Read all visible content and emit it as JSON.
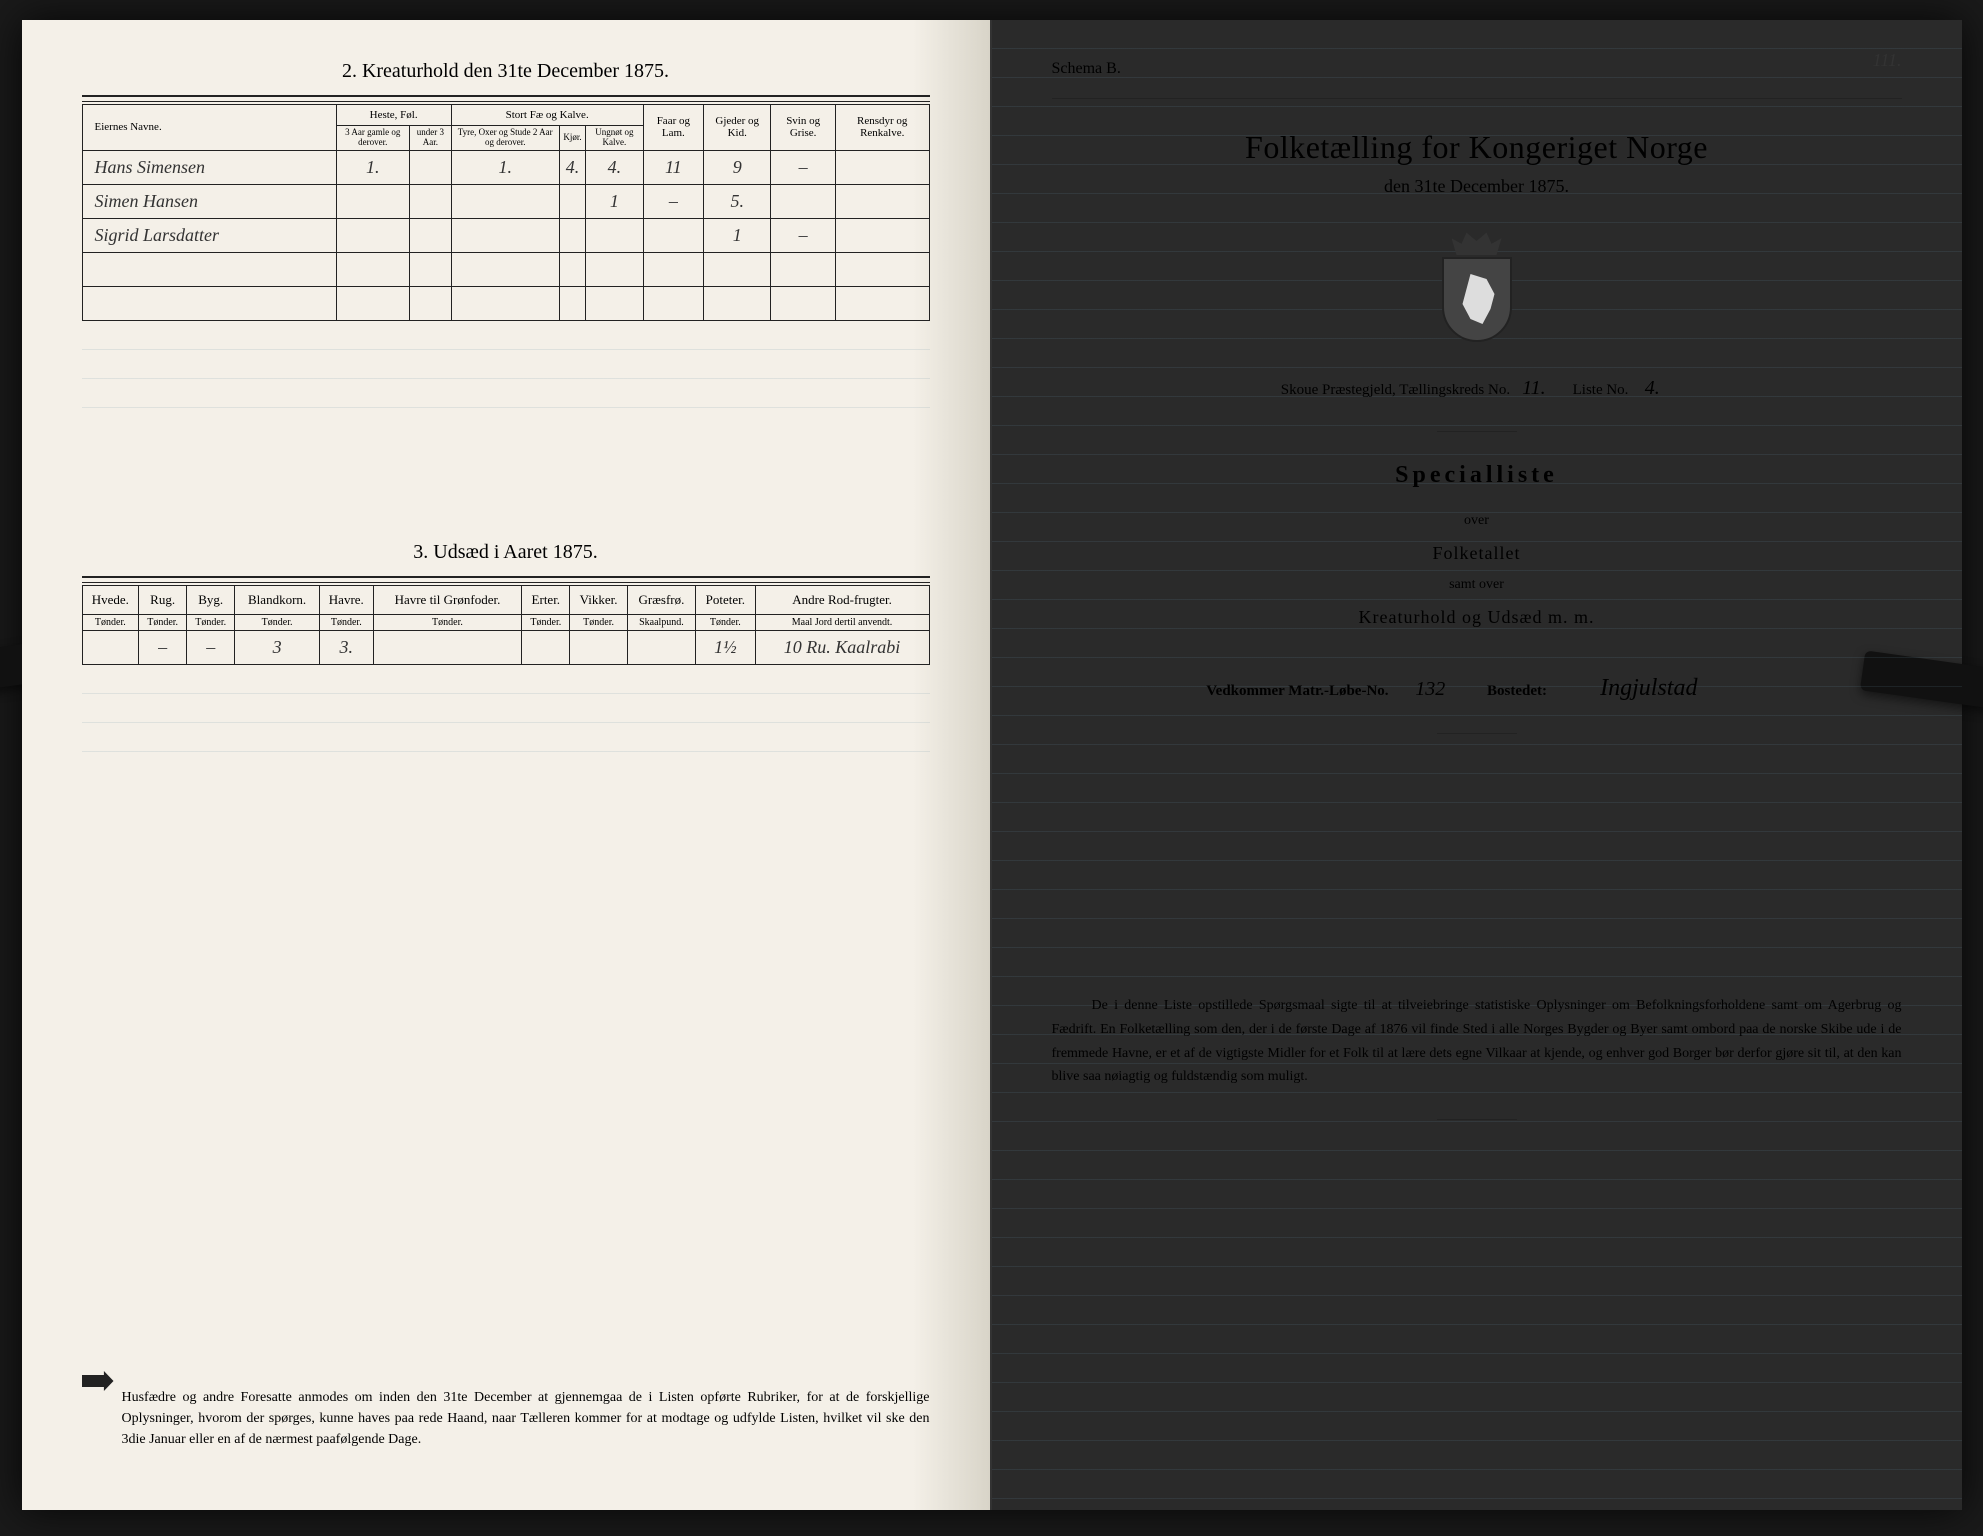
{
  "left": {
    "section2_title": "2.  Kreaturhold den 31te December 1875.",
    "section3_title": "3.  Udsæd i Aaret 1875.",
    "kreatur": {
      "headers": {
        "owner": "Eiernes Navne.",
        "group_horse": "Heste, Føl.",
        "group_cattle": "Stort Fæ og Kalve.",
        "sheep": "Faar og Lam.",
        "goat": "Gjeder og Kid.",
        "pig": "Svin og Grise.",
        "reindeer": "Rensdyr og Renkalve.",
        "horse_a": "3 Aar gamle og derover.",
        "horse_b": "under 3 Aar.",
        "cattle_a": "Tyre, Oxer og Stude 2 Aar og derover.",
        "cattle_b": "Kjør.",
        "cattle_c": "Ungnøt og Kalve."
      },
      "rows": [
        {
          "owner": "Hans Simensen",
          "h1": "1.",
          "h2": "",
          "c1": "1.",
          "c2": "4.",
          "c3": "4.",
          "sheep": "11",
          "goat": "9",
          "pig": "–",
          "rein": ""
        },
        {
          "owner": "Simen Hansen",
          "h1": "",
          "h2": "",
          "c1": "",
          "c2": "",
          "c3": "1",
          "sheep": "–",
          "goat": "5.",
          "pig": "",
          "rein": ""
        },
        {
          "owner": "Sigrid Larsdatter",
          "h1": "",
          "h2": "",
          "c1": "",
          "c2": "",
          "c3": "",
          "sheep": "",
          "goat": "1",
          "pig": "–",
          "rein": ""
        },
        {
          "owner": "",
          "h1": "",
          "h2": "",
          "c1": "",
          "c2": "",
          "c3": "",
          "sheep": "",
          "goat": "",
          "pig": "",
          "rein": ""
        },
        {
          "owner": "",
          "h1": "",
          "h2": "",
          "c1": "",
          "c2": "",
          "c3": "",
          "sheep": "",
          "goat": "",
          "pig": "",
          "rein": ""
        }
      ]
    },
    "udsaed": {
      "cols": [
        {
          "label": "Hvede.",
          "unit": "Tønder."
        },
        {
          "label": "Rug.",
          "unit": "Tønder."
        },
        {
          "label": "Byg.",
          "unit": "Tønder."
        },
        {
          "label": "Blandkorn.",
          "unit": "Tønder."
        },
        {
          "label": "Havre.",
          "unit": "Tønder."
        },
        {
          "label": "Havre til Grønfoder.",
          "unit": "Tønder."
        },
        {
          "label": "Erter.",
          "unit": "Tønder."
        },
        {
          "label": "Vikker.",
          "unit": "Tønder."
        },
        {
          "label": "Græsfrø.",
          "unit": "Skaalpund."
        },
        {
          "label": "Poteter.",
          "unit": "Tønder."
        },
        {
          "label": "Andre Rod-frugter.",
          "unit": "Maal Jord dertil anvendt."
        }
      ],
      "values": [
        "",
        "–",
        "–",
        "3",
        "3.",
        "",
        "",
        "",
        "",
        "1½",
        "10 Ru. Kaalrabi"
      ]
    },
    "footnote": "Husfædre og andre Foresatte anmodes om inden den 31te December at gjennemgaa de i Listen opførte Rubriker, for at de forskjellige Oplysninger, hvorom der spørges, kunne haves paa rede Haand, naar Tælleren kommer for at modtage og udfylde Listen, hvilket vil ske den 3die Januar eller en af de nærmest paafølgende Dage."
  },
  "right": {
    "page_no": "111.",
    "schema": "Schema B.",
    "title": "Folketælling for Kongeriget Norge",
    "subtitle": "den 31te December 1875.",
    "meta_prefix": "Skoue Præstegjeld,   Tællingskreds No.",
    "kreds_no": "11.",
    "liste_label": "Liste No.",
    "liste_no": "4.",
    "special": "Specialliste",
    "over": "over",
    "folketallet": "Folketallet",
    "samt_over": "samt over",
    "kreatur_line": "Kreaturhold og Udsæd m. m.",
    "vedk_label": "Vedkommer Matr.-Løbe-No.",
    "matr_no": "132",
    "bostedet_label": "Bostedet:",
    "bostedet": "Ingjulstad",
    "bottom": "De i denne Liste opstillede Spørgsmaal sigte til at tilveiebringe statistiske Oplysninger om Befolkningsforholdene samt om Agerbrug og Fædrift.  En Folketælling som den, der i de første Dage af 1876 vil finde Sted i alle Norges Bygder og Byer samt ombord paa de norske Skibe ude i de fremmede Havne, er et af de vigtigste Midler for et Folk til at lære dets egne Vilkaar at kjende, og enhver god Borger bør derfor gjøre sit til, at den kan blive saa nøiagtig og fuldstændig som muligt."
  }
}
